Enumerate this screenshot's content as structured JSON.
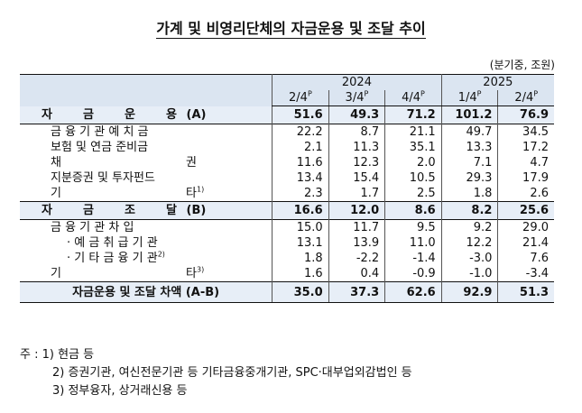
{
  "title": "가계 및 비영리단체의 자금운용 및 조달 추이",
  "unit": "(분기중, 조원)",
  "header": {
    "years": [
      "2024",
      "2025"
    ],
    "quarters": [
      "2/4",
      "3/4",
      "4/4",
      "1/4",
      "2/4"
    ],
    "prelim_mark": "P"
  },
  "sections": [
    {
      "label_chars": [
        "자",
        "금",
        "운",
        "용",
        "(A)"
      ],
      "values": [
        "51.6",
        "49.3",
        "71.2",
        "101.2",
        "76.9"
      ],
      "rows": [
        {
          "label": "금 융 기 관  예 치 금",
          "values": [
            "22.2",
            "8.7",
            "21.1",
            "49.7",
            "34.5"
          ]
        },
        {
          "label": "보험 및 연금 준비금",
          "values": [
            "2.1",
            "11.3",
            "35.1",
            "13.3",
            "17.2"
          ]
        },
        {
          "label_left": "채",
          "label_right": "권",
          "values": [
            "11.6",
            "12.3",
            "2.0",
            "7.1",
            "4.7"
          ]
        },
        {
          "label": "지분증권 및 투자펀드",
          "values": [
            "13.4",
            "15.4",
            "10.5",
            "29.3",
            "17.9"
          ]
        },
        {
          "label_left": "기",
          "label_right": "타",
          "note": "1)",
          "values": [
            "2.3",
            "1.7",
            "2.5",
            "1.8",
            "2.6"
          ]
        }
      ]
    },
    {
      "label_chars": [
        "자",
        "금",
        "조",
        "달",
        "(B)"
      ],
      "values": [
        "16.6",
        "12.0",
        "8.6",
        "8.2",
        "25.6"
      ],
      "rows": [
        {
          "label": "금 융 기 관  차 입",
          "values": [
            "15.0",
            "11.7",
            "9.5",
            "9.2",
            "29.0"
          ]
        },
        {
          "label": "· 예 금 취 급 기 관",
          "values": [
            "13.1",
            "13.9",
            "11.0",
            "12.2",
            "21.4"
          ]
        },
        {
          "label": "· 기 타 금 융 기 관",
          "note": "2)",
          "values": [
            "1.8",
            "-2.2",
            "-1.4",
            "-3.0",
            "7.6"
          ]
        },
        {
          "label_left": "기",
          "label_right": "타",
          "note": "3)",
          "values": [
            "1.6",
            "0.4",
            "-0.9",
            "-1.0",
            "-3.4"
          ]
        }
      ]
    }
  ],
  "total": {
    "label": "자금운용 및 조달 차액 (A-B)",
    "values": [
      "35.0",
      "37.3",
      "62.6",
      "92.9",
      "51.3"
    ]
  },
  "notes": [
    "주 : 1) 현금 등",
    "2) 증권기관, 여신전문기관 등 기타금융중개기관, SPC·대부업외감법인 등",
    "3) 정부융자, 상거래신용 등"
  ]
}
